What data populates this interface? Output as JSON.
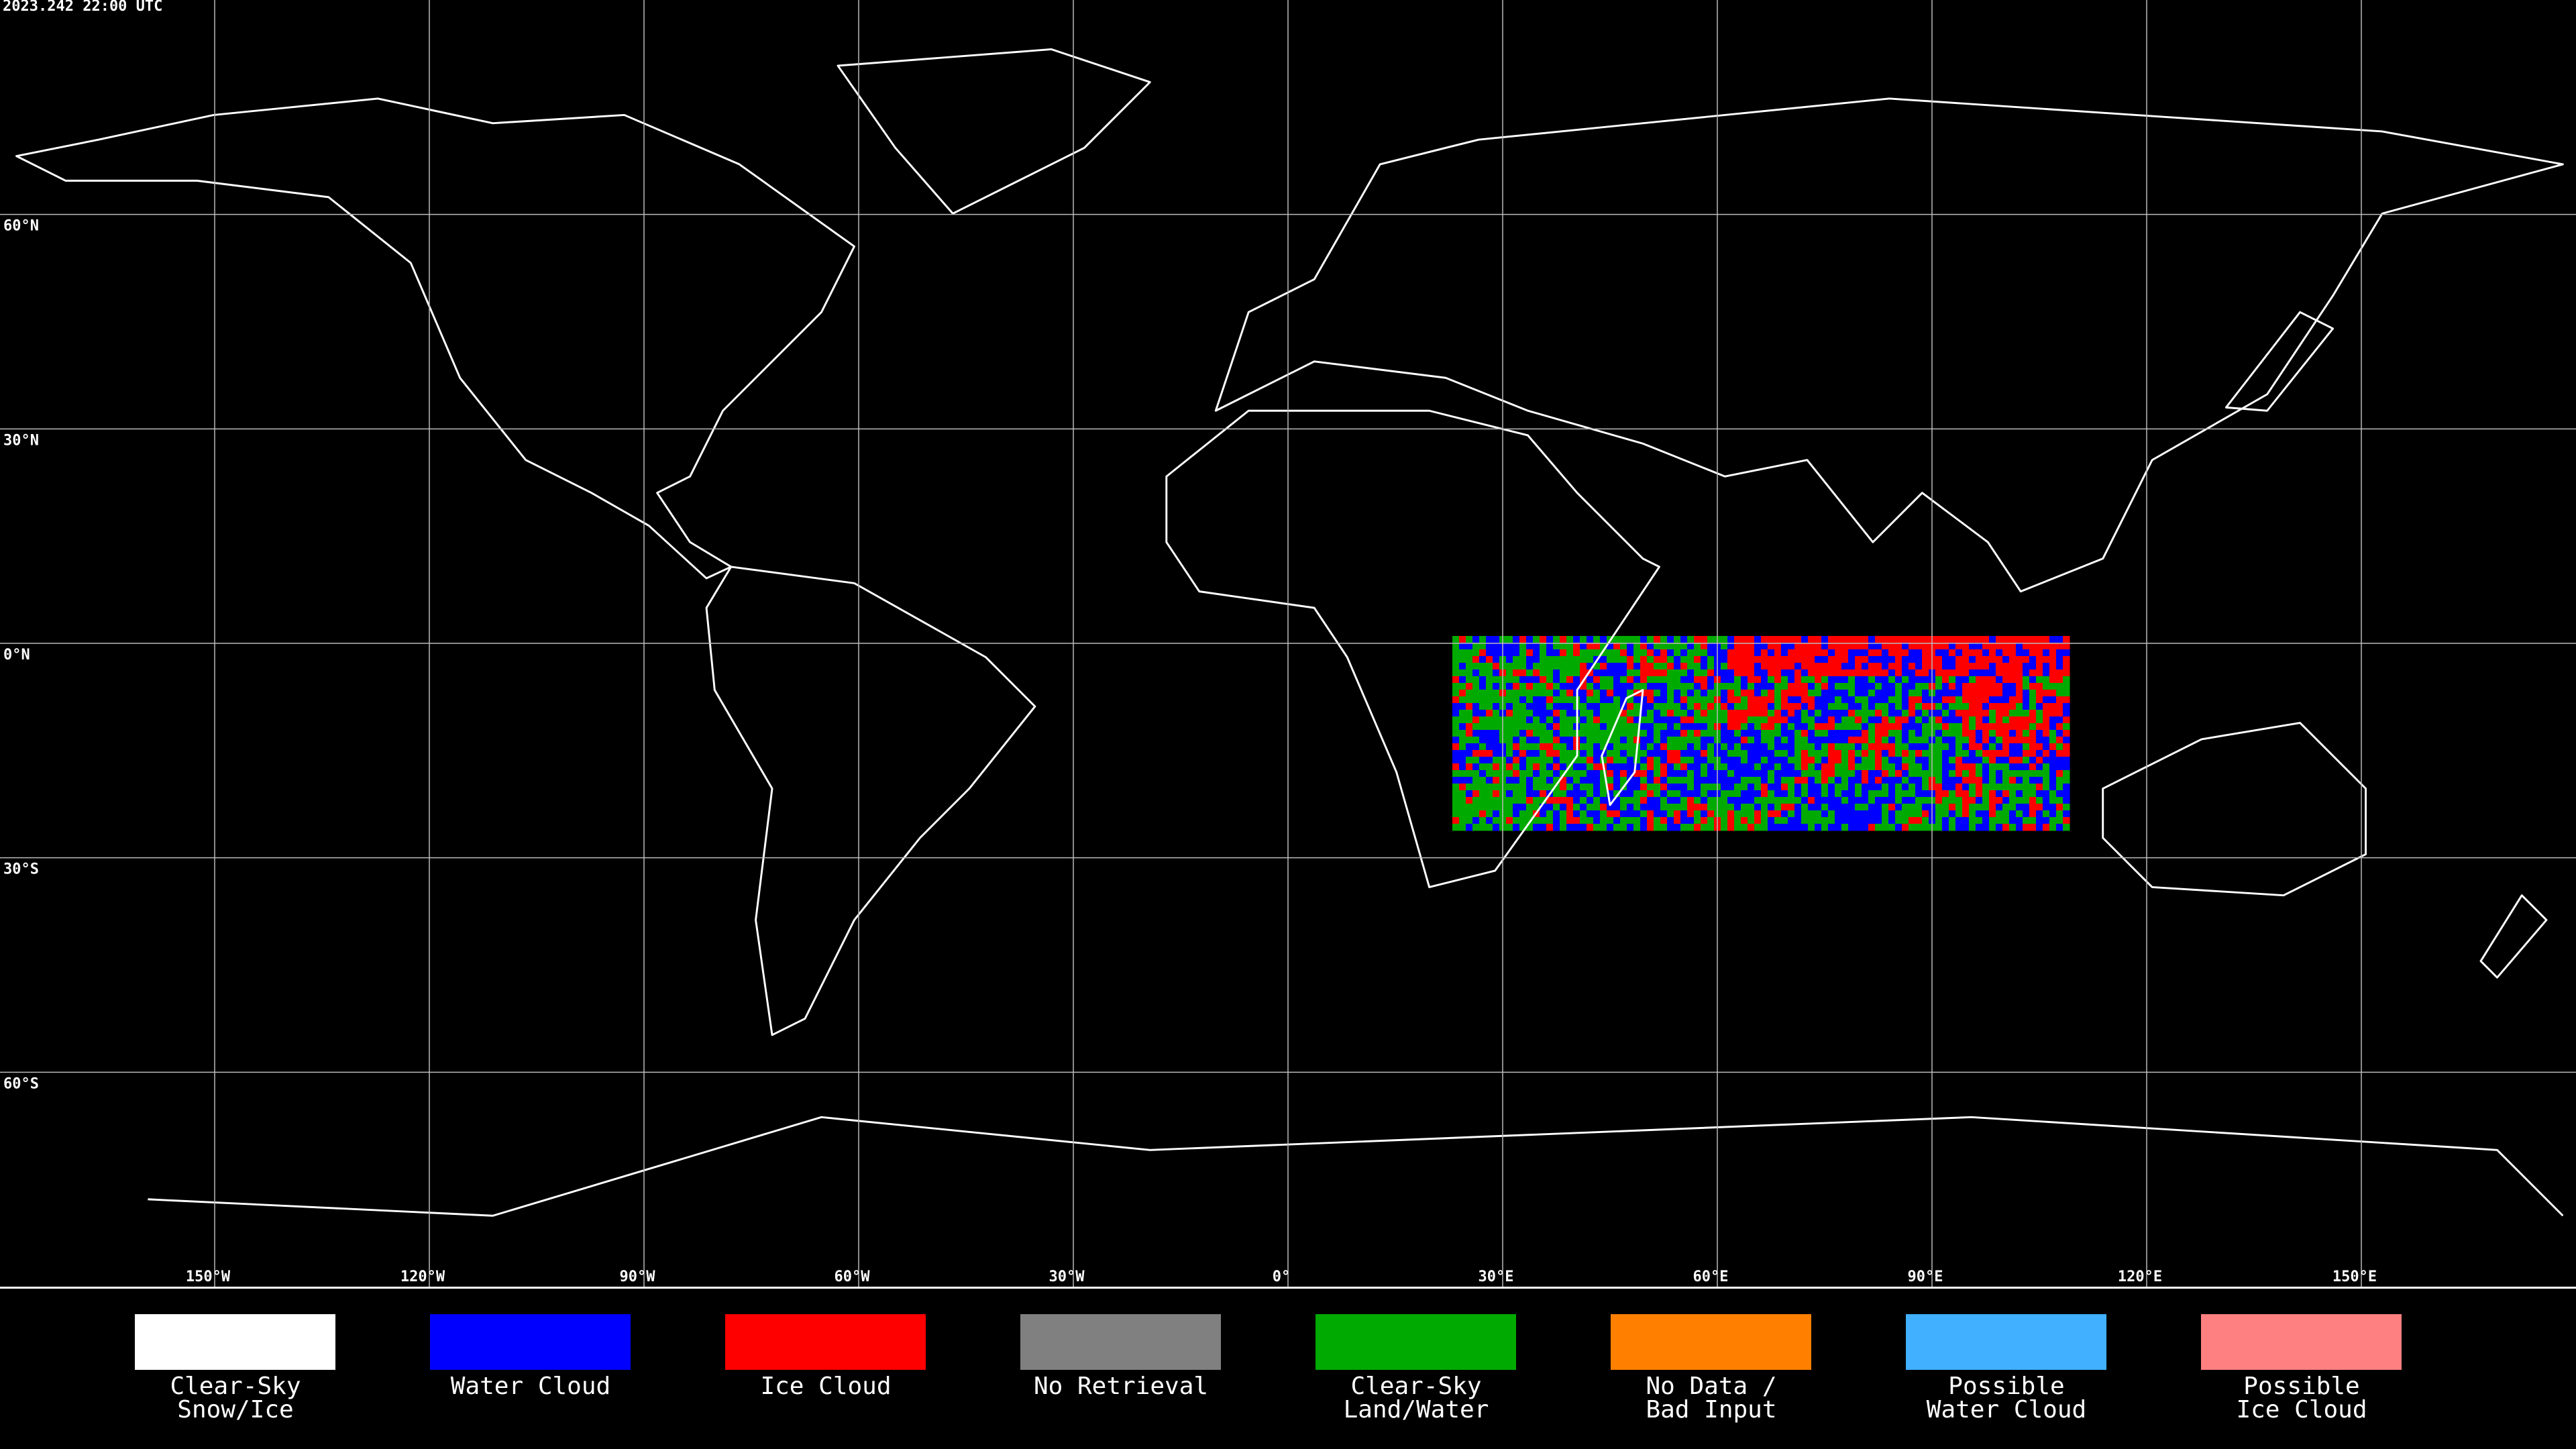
{
  "header": {
    "timestamp": "2023.242 22:00 UTC"
  },
  "map": {
    "lat_labels": [
      "60°N",
      "30°N",
      "0°N",
      "30°S",
      "60°S"
    ],
    "lon_labels": [
      "150°W",
      "120°W",
      "90°W",
      "60°W",
      "30°W",
      "0°",
      "30°E",
      "60°E",
      "90°E",
      "120°E",
      "150°E"
    ]
  },
  "legend": {
    "items": [
      {
        "lines": [
          "Clear-Sky",
          "Snow/Ice"
        ],
        "color": "#ffffff"
      },
      {
        "lines": [
          "Water Cloud"
        ],
        "color": "#0000ff"
      },
      {
        "lines": [
          "Ice Cloud"
        ],
        "color": "#ff0000"
      },
      {
        "lines": [
          "No Retrieval"
        ],
        "color": "#808080"
      },
      {
        "lines": [
          "Clear-Sky",
          "Land/Water"
        ],
        "color": "#00aa00"
      },
      {
        "lines": [
          "No Data /",
          "Bad Input"
        ],
        "color": "#ff8000"
      },
      {
        "lines": [
          "Possible",
          "Water Cloud"
        ],
        "color": "#40b0ff"
      },
      {
        "lines": [
          "Possible",
          "Ice Cloud"
        ],
        "color": "#ff8080"
      }
    ]
  }
}
